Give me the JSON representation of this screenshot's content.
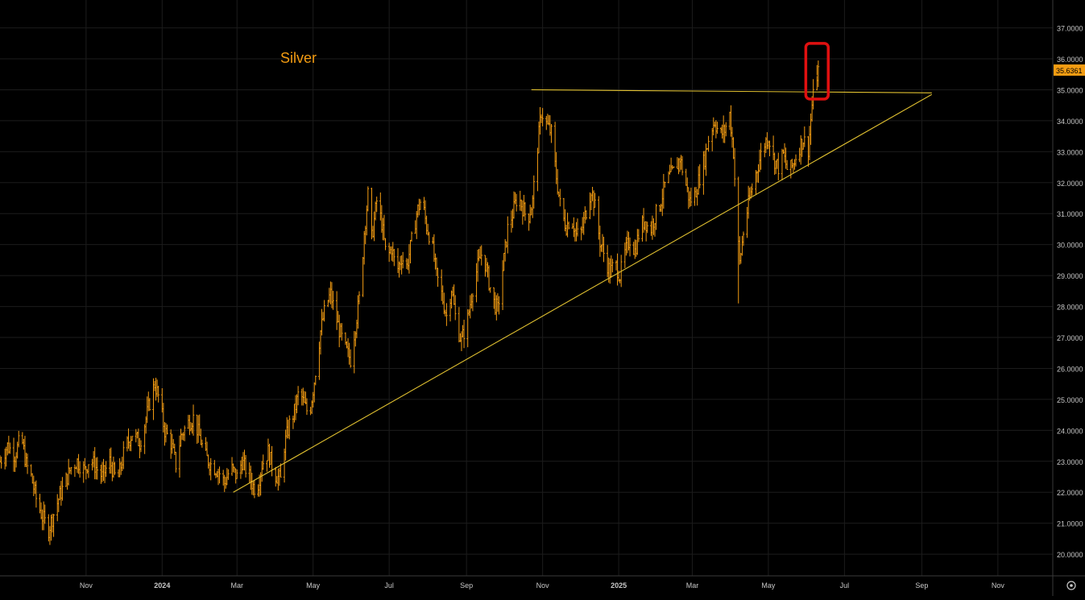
{
  "colors": {
    "background": "#000000",
    "grid": "#1c1c1c",
    "axis_line": "#3a3a3a",
    "axis_text": "#c8c8c8",
    "price": "#f39c12",
    "trendline": "#e0c030",
    "highlight_box": "#e01010",
    "title": "#f39c12",
    "price_label_bg": "#f39c12",
    "price_label_text": "#000000"
  },
  "chart_data": {
    "type": "line",
    "title": "Silver",
    "xlabel": "",
    "ylabel": "",
    "y_range": [
      19.3,
      37.9
    ],
    "x_range": [
      "2023-08-24",
      "2025-12-15"
    ],
    "grid": true,
    "x_ticks": [
      {
        "date": "2023-11-01",
        "label": "Nov"
      },
      {
        "date": "2024-01-01",
        "label": "2024"
      },
      {
        "date": "2024-03-01",
        "label": "Mar"
      },
      {
        "date": "2024-05-01",
        "label": "May"
      },
      {
        "date": "2024-07-01",
        "label": "Jul"
      },
      {
        "date": "2024-09-01",
        "label": "Sep"
      },
      {
        "date": "2024-11-01",
        "label": "Nov"
      },
      {
        "date": "2025-01-01",
        "label": "2025"
      },
      {
        "date": "2025-03-01",
        "label": "Mar"
      },
      {
        "date": "2025-05-01",
        "label": "May"
      },
      {
        "date": "2025-07-01",
        "label": "Jul"
      },
      {
        "date": "2025-09-01",
        "label": "Sep"
      },
      {
        "date": "2025-11-01",
        "label": "Nov"
      }
    ],
    "y_ticks": [
      {
        "value": 20,
        "label": "20.0000"
      },
      {
        "value": 21,
        "label": "21.0000"
      },
      {
        "value": 22,
        "label": "22.0000"
      },
      {
        "value": 23,
        "label": "23.0000"
      },
      {
        "value": 24,
        "label": "24.0000"
      },
      {
        "value": 25,
        "label": "25.0000"
      },
      {
        "value": 26,
        "label": "26.0000"
      },
      {
        "value": 27,
        "label": "27.0000"
      },
      {
        "value": 28,
        "label": "28.0000"
      },
      {
        "value": 29,
        "label": "29.0000"
      },
      {
        "value": 30,
        "label": "30.0000"
      },
      {
        "value": 31,
        "label": "31.0000"
      },
      {
        "value": 32,
        "label": "32.0000"
      },
      {
        "value": 33,
        "label": "33.0000"
      },
      {
        "value": 34,
        "label": "34.0000"
      },
      {
        "value": 35,
        "label": "35.0000"
      },
      {
        "value": 36,
        "label": "36.0000"
      },
      {
        "value": 37,
        "label": "37.0000"
      }
    ],
    "last_price": {
      "value": 35.6361,
      "label": "35.6361"
    },
    "series": [
      {
        "name": "",
        "points": [
          [
            "2023-08-24",
            23.0
          ],
          [
            "2023-08-30",
            23.5
          ],
          [
            "2023-09-05",
            23.2
          ],
          [
            "2023-09-10",
            23.8
          ],
          [
            "2023-09-14",
            22.9
          ],
          [
            "2023-09-18",
            22.5
          ],
          [
            "2023-09-22",
            21.8
          ],
          [
            "2023-09-27",
            21.2
          ],
          [
            "2023-10-02",
            20.8
          ],
          [
            "2023-10-06",
            21.3
          ],
          [
            "2023-10-11",
            21.9
          ],
          [
            "2023-10-16",
            22.4
          ],
          [
            "2023-10-20",
            22.8
          ],
          [
            "2023-10-25",
            23.0
          ],
          [
            "2023-10-31",
            22.7
          ],
          [
            "2023-11-04",
            23.1
          ],
          [
            "2023-11-09",
            22.8
          ],
          [
            "2023-11-14",
            22.5
          ],
          [
            "2023-11-20",
            23.0
          ],
          [
            "2023-11-26",
            22.3
          ],
          [
            "2023-12-02",
            23.4
          ],
          [
            "2023-12-08",
            23.9
          ],
          [
            "2023-12-14",
            23.6
          ],
          [
            "2023-12-18",
            24.2
          ],
          [
            "2023-12-22",
            24.9
          ],
          [
            "2023-12-26",
            25.5
          ],
          [
            "2023-12-29",
            25.1
          ],
          [
            "2024-01-03",
            24.0
          ],
          [
            "2024-01-08",
            23.6
          ],
          [
            "2024-01-12",
            22.9
          ],
          [
            "2024-01-16",
            23.8
          ],
          [
            "2024-01-21",
            24.2
          ],
          [
            "2024-01-26",
            24.4
          ],
          [
            "2024-01-31",
            23.8
          ],
          [
            "2024-02-04",
            23.2
          ],
          [
            "2024-02-09",
            22.9
          ],
          [
            "2024-02-15",
            22.7
          ],
          [
            "2024-02-20",
            22.3
          ],
          [
            "2024-02-25",
            22.8
          ],
          [
            "2024-03-01",
            22.5
          ],
          [
            "2024-03-05",
            23.0
          ],
          [
            "2024-03-10",
            22.6
          ],
          [
            "2024-03-14",
            22.2
          ],
          [
            "2024-03-17",
            22.1
          ],
          [
            "2024-03-21",
            22.9
          ],
          [
            "2024-03-26",
            23.3
          ],
          [
            "2024-03-31",
            22.6
          ],
          [
            "2024-04-05",
            22.4
          ],
          [
            "2024-04-08",
            23.5
          ],
          [
            "2024-04-12",
            24.2
          ],
          [
            "2024-04-16",
            24.6
          ],
          [
            "2024-04-20",
            25.3
          ],
          [
            "2024-04-24",
            24.8
          ],
          [
            "2024-04-28",
            24.5
          ],
          [
            "2024-05-02",
            25.6
          ],
          [
            "2024-05-07",
            27.2
          ],
          [
            "2024-05-11",
            28.0
          ],
          [
            "2024-05-15",
            28.4
          ],
          [
            "2024-05-19",
            27.7
          ],
          [
            "2024-05-23",
            27.1
          ],
          [
            "2024-05-27",
            26.6
          ],
          [
            "2024-05-31",
            26.3
          ],
          [
            "2024-06-04",
            27.4
          ],
          [
            "2024-06-08",
            28.5
          ],
          [
            "2024-06-11",
            30.4
          ],
          [
            "2024-06-14",
            31.6
          ],
          [
            "2024-06-17",
            30.2
          ],
          [
            "2024-06-21",
            31.4
          ],
          [
            "2024-06-25",
            30.7
          ],
          [
            "2024-06-29",
            29.5
          ],
          [
            "2024-07-03",
            29.9
          ],
          [
            "2024-07-07",
            29.1
          ],
          [
            "2024-07-11",
            29.6
          ],
          [
            "2024-07-15",
            29.3
          ],
          [
            "2024-07-19",
            30.1
          ],
          [
            "2024-07-23",
            31.0
          ],
          [
            "2024-07-27",
            31.5
          ],
          [
            "2024-07-31",
            30.6
          ],
          [
            "2024-08-04",
            30.1
          ],
          [
            "2024-08-08",
            29.0
          ],
          [
            "2024-08-12",
            28.4
          ],
          [
            "2024-08-16",
            27.7
          ],
          [
            "2024-08-20",
            28.6
          ],
          [
            "2024-08-24",
            27.4
          ],
          [
            "2024-08-28",
            26.9
          ],
          [
            "2024-09-02",
            27.6
          ],
          [
            "2024-09-06",
            28.6
          ],
          [
            "2024-09-10",
            29.3
          ],
          [
            "2024-09-14",
            29.8
          ],
          [
            "2024-09-18",
            29.0
          ],
          [
            "2024-09-22",
            28.2
          ],
          [
            "2024-09-26",
            27.9
          ],
          [
            "2024-09-30",
            29.2
          ],
          [
            "2024-10-04",
            30.5
          ],
          [
            "2024-10-08",
            31.0
          ],
          [
            "2024-10-12",
            31.6
          ],
          [
            "2024-10-16",
            31.2
          ],
          [
            "2024-10-20",
            30.8
          ],
          [
            "2024-10-24",
            31.4
          ],
          [
            "2024-10-27",
            32.8
          ],
          [
            "2024-10-31",
            34.3
          ],
          [
            "2024-11-04",
            33.9
          ],
          [
            "2024-11-08",
            33.6
          ],
          [
            "2024-11-12",
            32.2
          ],
          [
            "2024-11-16",
            31.0
          ],
          [
            "2024-11-20",
            30.6
          ],
          [
            "2024-11-24",
            30.9
          ],
          [
            "2024-11-28",
            30.3
          ],
          [
            "2024-12-02",
            30.4
          ],
          [
            "2024-12-06",
            31.1
          ],
          [
            "2024-12-10",
            31.8
          ],
          [
            "2024-12-13",
            31.2
          ],
          [
            "2024-12-17",
            30.1
          ],
          [
            "2024-12-21",
            29.6
          ],
          [
            "2024-12-25",
            29.1
          ],
          [
            "2024-12-29",
            29.4
          ],
          [
            "2025-01-02",
            29.0
          ],
          [
            "2025-01-06",
            29.7
          ],
          [
            "2025-01-10",
            30.2
          ],
          [
            "2025-01-14",
            29.8
          ],
          [
            "2025-01-18",
            30.5
          ],
          [
            "2025-01-22",
            30.8
          ],
          [
            "2025-01-26",
            30.4
          ],
          [
            "2025-01-30",
            30.9
          ],
          [
            "2025-02-03",
            31.3
          ],
          [
            "2025-02-07",
            31.9
          ],
          [
            "2025-02-11",
            32.2
          ],
          [
            "2025-02-15",
            32.4
          ],
          [
            "2025-02-19",
            32.8
          ],
          [
            "2025-02-23",
            32.1
          ],
          [
            "2025-02-27",
            31.4
          ],
          [
            "2025-03-03",
            31.6
          ],
          [
            "2025-03-07",
            32.2
          ],
          [
            "2025-03-11",
            32.8
          ],
          [
            "2025-03-15",
            33.6
          ],
          [
            "2025-03-19",
            34.0
          ],
          [
            "2025-03-23",
            33.5
          ],
          [
            "2025-03-27",
            33.7
          ],
          [
            "2025-03-31",
            34.2
          ],
          [
            "2025-04-03",
            33.0
          ],
          [
            "2025-04-06",
            30.5
          ],
          [
            "2025-04-08",
            29.4
          ],
          [
            "2025-04-11",
            30.4
          ],
          [
            "2025-04-15",
            31.3
          ],
          [
            "2025-04-19",
            32.0
          ],
          [
            "2025-04-23",
            32.6
          ],
          [
            "2025-04-27",
            33.2
          ],
          [
            "2025-05-01",
            33.5
          ],
          [
            "2025-05-05",
            32.8
          ],
          [
            "2025-05-09",
            32.5
          ],
          [
            "2025-05-13",
            32.9
          ],
          [
            "2025-05-17",
            32.3
          ],
          [
            "2025-05-21",
            32.6
          ],
          [
            "2025-05-25",
            33.1
          ],
          [
            "2025-05-29",
            33.4
          ],
          [
            "2025-06-02",
            33.1
          ],
          [
            "2025-06-05",
            34.5
          ],
          [
            "2025-06-08",
            35.3
          ],
          [
            "2025-06-10",
            35.6361
          ]
        ]
      }
    ],
    "annotations": [
      {
        "type": "trendline",
        "name": "rising-support",
        "from": {
          "date": "2024-02-27",
          "value": 22.0
        },
        "to": {
          "date": "2025-09-09",
          "value": 34.85
        }
      },
      {
        "type": "trendline",
        "name": "horizontal-resistance",
        "from": {
          "date": "2024-10-23",
          "value": 35.0
        },
        "to": {
          "date": "2025-09-09",
          "value": 34.9
        }
      },
      {
        "type": "box",
        "name": "breakout-box",
        "from": {
          "date": "2025-05-31",
          "value": 36.5
        },
        "to": {
          "date": "2025-06-18",
          "value": 34.7
        }
      }
    ]
  }
}
